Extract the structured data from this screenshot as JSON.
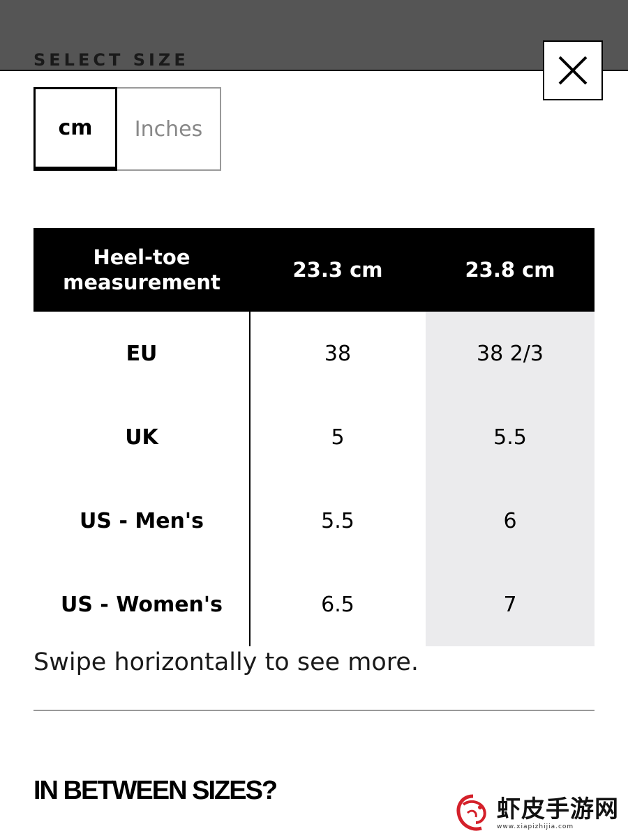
{
  "header": {
    "title": "SELECT SIZE",
    "close_icon": "close-icon"
  },
  "unit_toggle": {
    "options": [
      "cm",
      "Inches"
    ],
    "selected": "cm"
  },
  "size_table": {
    "header": [
      "Heel-toe measurement",
      "23.3 cm",
      "23.8 cm"
    ],
    "rows": [
      {
        "label": "EU",
        "values": [
          "38",
          "38 2/3"
        ]
      },
      {
        "label": "UK",
        "values": [
          "5",
          "5.5"
        ]
      },
      {
        "label": "US - Men's",
        "values": [
          "5.5",
          "6"
        ]
      },
      {
        "label": "US - Women's",
        "values": [
          "6.5",
          "7"
        ]
      }
    ],
    "highlight_color": "#ebebed"
  },
  "swipe_hint": "Swipe horizontally to see more.",
  "section_title": "IN BETWEEN SIZES?",
  "watermark": {
    "text": "虾皮手游网",
    "url": "www.xiapizhijia.com"
  },
  "colors": {
    "overlay": "#555555",
    "accent": "#000000"
  }
}
